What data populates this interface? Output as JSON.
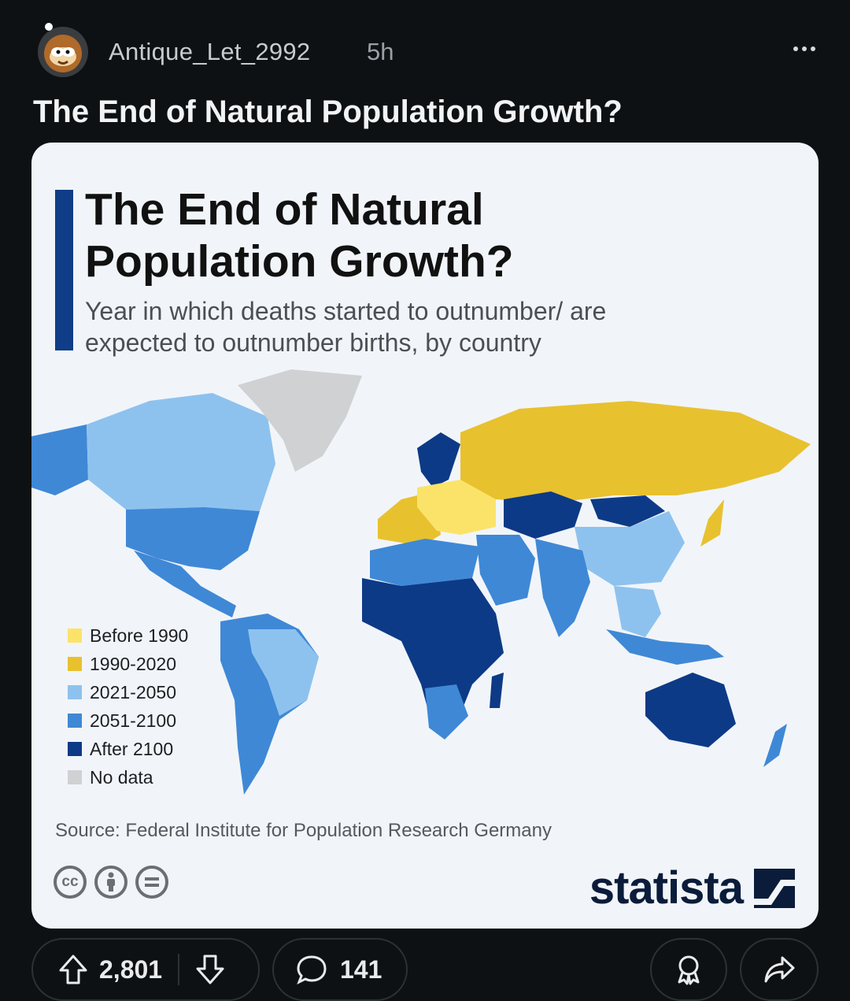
{
  "post": {
    "username": "Antique_Let_2992",
    "time": "5h",
    "title": "The End of Natural Population Growth?"
  },
  "infographic": {
    "title": "The End of Natural Population Growth?",
    "subtitle": "Year in which deaths started to outnumber/ are expected to outnumber births, by country",
    "legend": [
      {
        "label": "Before 1990",
        "color": "#fbe36a"
      },
      {
        "label": "1990-2020",
        "color": "#e8c12f"
      },
      {
        "label": "2021-2050",
        "color": "#8ec2ee"
      },
      {
        "label": "2051-2100",
        "color": "#3f88d6"
      },
      {
        "label": "After 2100",
        "color": "#0d3a86"
      },
      {
        "label": "No data",
        "color": "#cfd1d3"
      }
    ],
    "source": "Source: Federal Institute for Population Research Germany",
    "cc_icons": [
      "cc-icon",
      "attribution-icon",
      "no-derivatives-icon"
    ],
    "brand": "statista"
  },
  "actions": {
    "upvotes": "2,801",
    "comments": "141"
  }
}
